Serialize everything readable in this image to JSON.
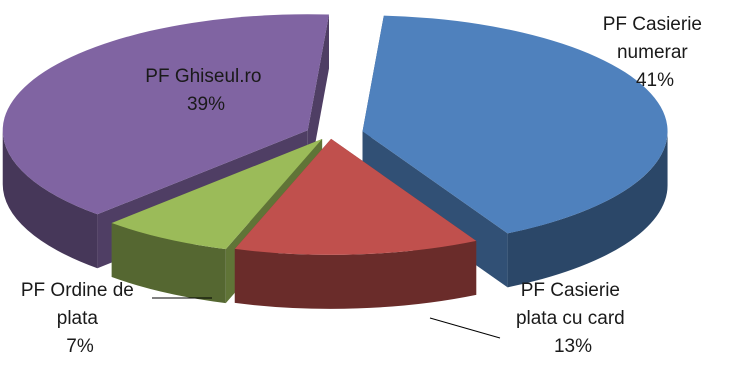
{
  "chart_data": {
    "type": "pie",
    "style": "3d-exploded",
    "title": "",
    "slices": [
      {
        "label_lines": [
          "PF Casierie",
          "numerar"
        ],
        "pct_label": "41%",
        "value": 41,
        "color": "#4F81BD"
      },
      {
        "label_lines": [
          "PF Casierie",
          "plata cu card"
        ],
        "pct_label": "13%",
        "value": 13,
        "color": "#C0504D"
      },
      {
        "label_lines": [
          "PF Ordine de",
          "plata"
        ],
        "pct_label": "7%",
        "value": 7,
        "color": "#9BBB59"
      },
      {
        "label_lines": [
          "PF Ghiseul.ro"
        ],
        "pct_label": "39%",
        "value": 39,
        "color": "#8064A2"
      }
    ]
  }
}
